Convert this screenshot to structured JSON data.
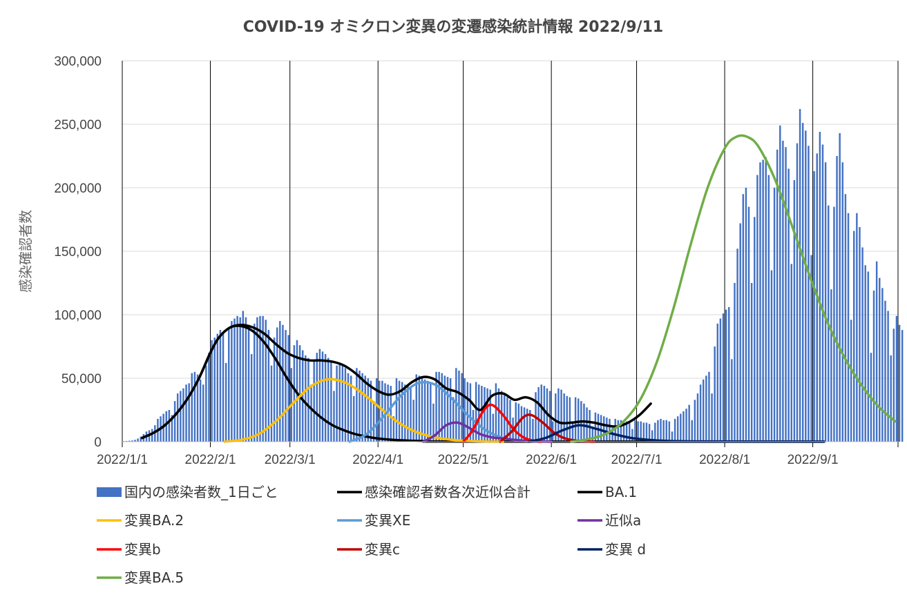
{
  "chart_data": {
    "type": "bar+line",
    "title": "COVID-19 オミクロン変異の変遷感染統計情報   2022/9/11",
    "ylabel": "感染確認者数",
    "xlabel": "",
    "ylim": [
      0,
      300000
    ],
    "y_ticks": [
      "0",
      "50,000",
      "100,000",
      "150,000",
      "200,000",
      "250,000",
      "300,000"
    ],
    "y_tick_values": [
      0,
      50000,
      100000,
      150000,
      200000,
      250000,
      300000
    ],
    "x_range": [
      "2022-01-01",
      "2022-09-30"
    ],
    "x_ticks": [
      "2022/1/1",
      "2022/2/1",
      "2022/3/1",
      "2022/4/1",
      "2022/5/1",
      "2022/6/1",
      "2022/7/1",
      "2022/8/1",
      "2022/9/1"
    ],
    "x_tick_dates": [
      "2022-01-01",
      "2022-02-01",
      "2022-03-01",
      "2022-04-01",
      "2022-05-01",
      "2022-06-01",
      "2022-07-01",
      "2022-08-01",
      "2022-09-01",
      "2022-10-01"
    ],
    "grid": "horizontal gridlines, vertical lines at month starts",
    "legend_position": "bottom",
    "bars": {
      "name": "国内の感染者数_1日ごと",
      "color": "#4472c4",
      "start_date": "2022-01-01",
      "values": [
        500,
        600,
        800,
        1000,
        1500,
        2500,
        4000,
        6000,
        8000,
        9000,
        10000,
        13000,
        18000,
        20000,
        22000,
        24000,
        25000,
        21000,
        32000,
        38000,
        40000,
        42000,
        45000,
        46000,
        54000,
        55000,
        53000,
        49000,
        45000,
        60000,
        70000,
        80000,
        82000,
        85000,
        88000,
        86000,
        62000,
        90000,
        95000,
        97000,
        99000,
        98000,
        103000,
        98000,
        92000,
        69000,
        93000,
        98000,
        99000,
        99000,
        96000,
        88000,
        60000,
        82000,
        90000,
        95000,
        92000,
        88000,
        84000,
        58000,
        76000,
        80000,
        76000,
        72000,
        68000,
        66000,
        45000,
        64000,
        70000,
        73000,
        71000,
        69000,
        66000,
        63000,
        40000,
        60000,
        62000,
        60000,
        58000,
        54000,
        52000,
        36000,
        58000,
        56000,
        54000,
        52000,
        50000,
        48000,
        32000,
        50000,
        48000,
        48000,
        46000,
        45000,
        44000,
        20000,
        50000,
        48000,
        47000,
        45000,
        44000,
        43000,
        33000,
        53000,
        52000,
        50000,
        49000,
        48000,
        47000,
        30000,
        55000,
        55000,
        54000,
        52000,
        51000,
        50000,
        35000,
        58000,
        56000,
        54000,
        50000,
        47000,
        46000,
        25000,
        47000,
        45000,
        44000,
        43000,
        42000,
        41000,
        22000,
        46000,
        42000,
        40000,
        38000,
        35000,
        33000,
        19000,
        31000,
        30000,
        28000,
        27000,
        26000,
        25000,
        18000,
        39000,
        43000,
        45000,
        44000,
        42000,
        40000,
        16000,
        38000,
        42000,
        41000,
        38000,
        36000,
        35000,
        15000,
        35000,
        34000,
        32000,
        30000,
        27000,
        25000,
        12000,
        23000,
        22000,
        21000,
        20000,
        19000,
        18000,
        11000,
        18000,
        17000,
        17000,
        16000,
        16000,
        15000,
        10000,
        17000,
        16000,
        16000,
        15000,
        15000,
        14000,
        9000,
        15000,
        17000,
        18000,
        17000,
        17000,
        16000,
        8000,
        18000,
        20000,
        22000,
        24000,
        26000,
        29000,
        17000,
        33000,
        38000,
        45000,
        49000,
        52000,
        55000,
        38000,
        75000,
        93000,
        97000,
        101000,
        104000,
        106000,
        65000,
        125000,
        152000,
        172000,
        195000,
        200000,
        185000,
        125000,
        177000,
        210000,
        220000,
        222000,
        224000,
        210000,
        135000,
        200000,
        230000,
        249000,
        237000,
        232000,
        215000,
        140000,
        206000,
        235000,
        262000,
        251000,
        245000,
        233000,
        147000,
        213000,
        227000,
        244000,
        234000,
        220000,
        186000,
        120000,
        185000,
        225000,
        243000,
        220000,
        195000,
        180000,
        96000,
        166000,
        180000,
        169000,
        153000,
        139000,
        134000,
        70000,
        119000,
        142000,
        129000,
        121000,
        111000,
        103000,
        68000,
        89000,
        99000,
        92000,
        88000
      ]
    },
    "series": [
      {
        "name": "感染確認者数各次近似合計",
        "color": "#000000",
        "points": [
          [
            "2022-01-08",
            3000
          ],
          [
            "2022-01-12",
            7000
          ],
          [
            "2022-01-16",
            13000
          ],
          [
            "2022-01-20",
            22000
          ],
          [
            "2022-01-24",
            34000
          ],
          [
            "2022-01-28",
            50000
          ],
          [
            "2022-02-01",
            70000
          ],
          [
            "2022-02-04",
            82000
          ],
          [
            "2022-02-08",
            90000
          ],
          [
            "2022-02-12",
            92000
          ],
          [
            "2022-02-16",
            90000
          ],
          [
            "2022-02-20",
            85000
          ],
          [
            "2022-02-24",
            77000
          ],
          [
            "2022-02-28",
            70000
          ],
          [
            "2022-03-04",
            66000
          ],
          [
            "2022-03-08",
            64000
          ],
          [
            "2022-03-12",
            64000
          ],
          [
            "2022-03-16",
            63000
          ],
          [
            "2022-03-20",
            60000
          ],
          [
            "2022-03-24",
            54000
          ],
          [
            "2022-03-28",
            46000
          ],
          [
            "2022-04-01",
            40000
          ],
          [
            "2022-04-05",
            37000
          ],
          [
            "2022-04-09",
            40000
          ],
          [
            "2022-04-13",
            47000
          ],
          [
            "2022-04-17",
            51000
          ],
          [
            "2022-04-21",
            49000
          ],
          [
            "2022-04-25",
            42000
          ],
          [
            "2022-04-29",
            39000
          ],
          [
            "2022-05-03",
            33000
          ],
          [
            "2022-05-07",
            25000
          ],
          [
            "2022-05-11",
            36000
          ],
          [
            "2022-05-15",
            38000
          ],
          [
            "2022-05-19",
            33000
          ],
          [
            "2022-05-23",
            35000
          ],
          [
            "2022-05-27",
            31000
          ],
          [
            "2022-05-31",
            21000
          ],
          [
            "2022-06-04",
            15000
          ],
          [
            "2022-06-08",
            15000
          ],
          [
            "2022-06-12",
            16000
          ],
          [
            "2022-06-16",
            15000
          ],
          [
            "2022-06-20",
            13000
          ],
          [
            "2022-06-24",
            12000
          ],
          [
            "2022-06-28",
            15000
          ],
          [
            "2022-07-02",
            21000
          ],
          [
            "2022-07-06",
            30000
          ]
        ]
      },
      {
        "name": "BA.1",
        "color": "#000000",
        "points": [
          [
            "2022-01-08",
            3000
          ],
          [
            "2022-01-12",
            7000
          ],
          [
            "2022-01-16",
            13000
          ],
          [
            "2022-01-20",
            22000
          ],
          [
            "2022-01-24",
            34000
          ],
          [
            "2022-01-28",
            50000
          ],
          [
            "2022-02-01",
            70000
          ],
          [
            "2022-02-04",
            82000
          ],
          [
            "2022-02-08",
            90000
          ],
          [
            "2022-02-12",
            91000
          ],
          [
            "2022-02-16",
            87000
          ],
          [
            "2022-02-20",
            78000
          ],
          [
            "2022-02-24",
            65000
          ],
          [
            "2022-02-28",
            50000
          ],
          [
            "2022-03-04",
            37000
          ],
          [
            "2022-03-08",
            27000
          ],
          [
            "2022-03-12",
            19000
          ],
          [
            "2022-03-16",
            13000
          ],
          [
            "2022-03-20",
            9000
          ],
          [
            "2022-03-24",
            6000
          ],
          [
            "2022-03-28",
            4000
          ],
          [
            "2022-04-01",
            2500
          ],
          [
            "2022-04-08",
            1200
          ],
          [
            "2022-04-18",
            400
          ],
          [
            "2022-05-01",
            100
          ],
          [
            "2022-09-05",
            0
          ]
        ]
      },
      {
        "name": "変異BA.2",
        "color": "#ffc000",
        "points": [
          [
            "2022-02-06",
            0
          ],
          [
            "2022-02-12",
            1500
          ],
          [
            "2022-02-18",
            6000
          ],
          [
            "2022-02-24",
            16000
          ],
          [
            "2022-03-02",
            30000
          ],
          [
            "2022-03-08",
            43000
          ],
          [
            "2022-03-14",
            49000
          ],
          [
            "2022-03-20",
            47000
          ],
          [
            "2022-03-26",
            39000
          ],
          [
            "2022-04-01",
            28000
          ],
          [
            "2022-04-07",
            17000
          ],
          [
            "2022-04-13",
            9000
          ],
          [
            "2022-04-19",
            4500
          ],
          [
            "2022-04-25",
            2000
          ],
          [
            "2022-05-01",
            800
          ],
          [
            "2022-05-08",
            200
          ],
          [
            "2022-05-15",
            0
          ]
        ]
      },
      {
        "name": "変異XE",
        "color": "#5b9bd5",
        "points": [
          [
            "2022-03-22",
            0
          ],
          [
            "2022-03-28",
            6000
          ],
          [
            "2022-04-03",
            20000
          ],
          [
            "2022-04-09",
            36000
          ],
          [
            "2022-04-15",
            46000
          ],
          [
            "2022-04-21",
            45000
          ],
          [
            "2022-04-27",
            34000
          ],
          [
            "2022-05-03",
            20000
          ],
          [
            "2022-05-09",
            9000
          ],
          [
            "2022-05-15",
            3000
          ],
          [
            "2022-05-21",
            800
          ],
          [
            "2022-05-28",
            0
          ]
        ]
      },
      {
        "name": "近似a",
        "color": "#7030a0",
        "points": [
          [
            "2022-04-17",
            0
          ],
          [
            "2022-04-21",
            5000
          ],
          [
            "2022-04-25",
            13000
          ],
          [
            "2022-04-29",
            15000
          ],
          [
            "2022-05-03",
            11000
          ],
          [
            "2022-05-07",
            6000
          ],
          [
            "2022-05-11",
            3500
          ],
          [
            "2022-05-15",
            2500
          ],
          [
            "2022-05-19",
            1500
          ],
          [
            "2022-05-25",
            500
          ],
          [
            "2022-06-01",
            0
          ]
        ]
      },
      {
        "name": "変異b",
        "color": "#ff0000",
        "points": [
          [
            "2022-05-01",
            0
          ],
          [
            "2022-05-04",
            8000
          ],
          [
            "2022-05-08",
            24000
          ],
          [
            "2022-05-11",
            29000
          ],
          [
            "2022-05-15",
            21000
          ],
          [
            "2022-05-19",
            9000
          ],
          [
            "2022-05-23",
            2500
          ],
          [
            "2022-05-28",
            0
          ]
        ]
      },
      {
        "name": "変異c",
        "color": "#c00000",
        "points": [
          [
            "2022-05-14",
            0
          ],
          [
            "2022-05-18",
            8000
          ],
          [
            "2022-05-22",
            19000
          ],
          [
            "2022-05-25",
            21000
          ],
          [
            "2022-05-29",
            15000
          ],
          [
            "2022-06-02",
            7000
          ],
          [
            "2022-06-06",
            2500
          ],
          [
            "2022-06-11",
            500
          ],
          [
            "2022-06-16",
            0
          ]
        ]
      },
      {
        "name": "変異 d",
        "color": "#002060",
        "points": [
          [
            "2022-05-24",
            0
          ],
          [
            "2022-05-30",
            3000
          ],
          [
            "2022-06-05",
            9000
          ],
          [
            "2022-06-11",
            13000
          ],
          [
            "2022-06-17",
            10000
          ],
          [
            "2022-06-23",
            6000
          ],
          [
            "2022-06-29",
            3000
          ],
          [
            "2022-07-05",
            1500
          ],
          [
            "2022-07-12",
            600
          ],
          [
            "2022-07-25",
            200
          ],
          [
            "2022-09-05",
            0
          ]
        ]
      },
      {
        "name": "変異BA.5",
        "color": "#70ad47",
        "points": [
          [
            "2022-06-08",
            0
          ],
          [
            "2022-06-14",
            2000
          ],
          [
            "2022-06-20",
            6000
          ],
          [
            "2022-06-26",
            15000
          ],
          [
            "2022-07-02",
            32000
          ],
          [
            "2022-07-08",
            62000
          ],
          [
            "2022-07-14",
            105000
          ],
          [
            "2022-07-20",
            155000
          ],
          [
            "2022-07-26",
            200000
          ],
          [
            "2022-08-01",
            231000
          ],
          [
            "2022-08-05",
            240000
          ],
          [
            "2022-08-09",
            240000
          ],
          [
            "2022-08-13",
            232000
          ],
          [
            "2022-08-19",
            205000
          ],
          [
            "2022-08-25",
            168000
          ],
          [
            "2022-08-31",
            130000
          ],
          [
            "2022-09-06",
            95000
          ],
          [
            "2022-09-12",
            67000
          ],
          [
            "2022-09-18",
            45000
          ],
          [
            "2022-09-24",
            28000
          ],
          [
            "2022-09-30",
            16000
          ]
        ]
      }
    ]
  }
}
